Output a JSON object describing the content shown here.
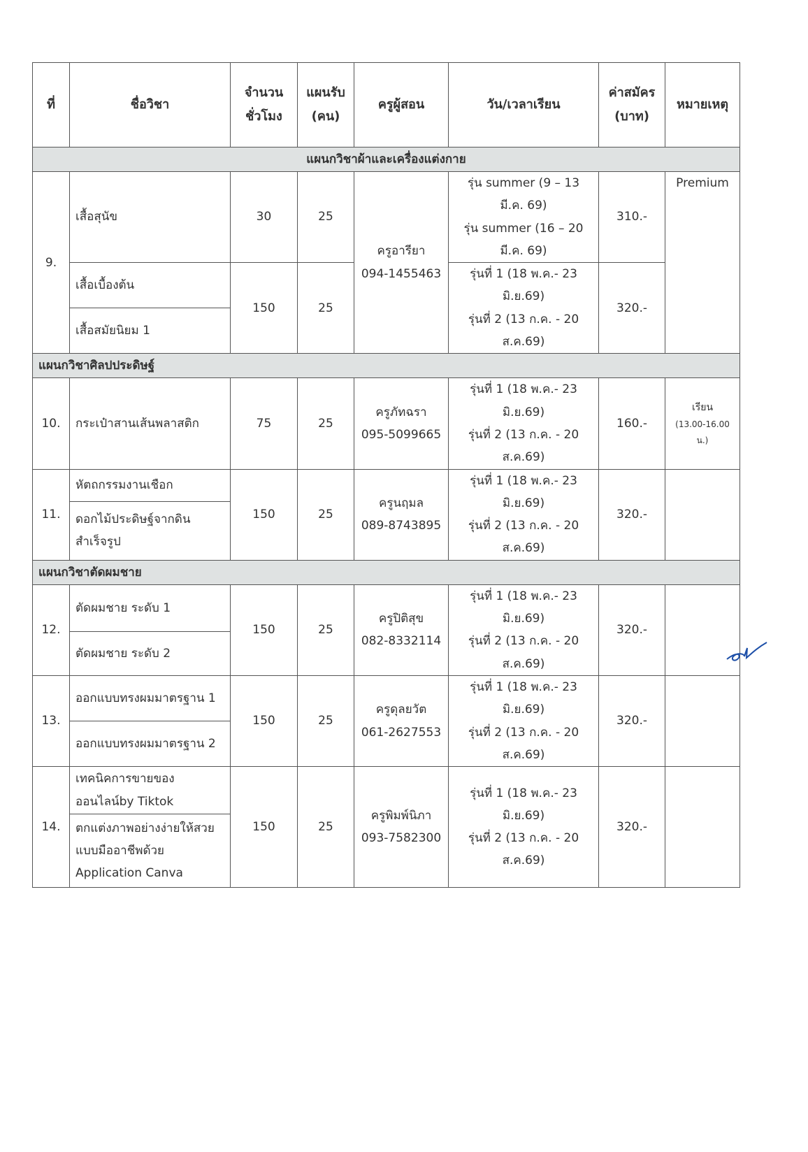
{
  "headers": {
    "no": "ที่",
    "subject": "ชื่อวิชา",
    "hours": "จำนวนชั่วโมง",
    "capacity": "แผนรับ (คน)",
    "teacher": "ครูผู้สอน",
    "schedule": "วัน/เวลาเรียน",
    "fee": "ค่าสมัคร (บาท)",
    "remark": "หมายเหตุ"
  },
  "sections": [
    {
      "title": "แผนกวิชาผ้าและเครื่องแต่งกาย",
      "courses": [
        {
          "no": "9.",
          "subjects": [
            "เสื้อสุนัข",
            "เสื้อเบื้องต้น",
            "เสื้อสมัยนิยม 1"
          ],
          "hours": [
            "30",
            "150"
          ],
          "capacity": [
            "25",
            "25"
          ],
          "teacher": "ครูอารียา",
          "phone": "094-1455463",
          "schedule": [
            "รุ่น summer (9 – 13 มี.ค. 69)",
            "รุ่น summer (16 – 20 มี.ค. 69)",
            "รุ่นที่ 1 (18 พ.ค.- 23 มิ.ย.69)",
            "รุ่นที่ 2 (13 ก.ค. - 20 ส.ค.69)"
          ],
          "fee": [
            "310.-",
            "320.-"
          ],
          "remark": "Premium"
        }
      ]
    },
    {
      "title": "แผนกวิชาศิลปประดิษฐ์",
      "courses": [
        {
          "no": "10.",
          "subjects": [
            "กระเป๋าสานเส้นพลาสติก"
          ],
          "hours": "75",
          "capacity": "25",
          "teacher": "ครูภัทฉรา",
          "phone": "095-5099665",
          "schedule": [
            "รุ่นที่ 1 (18 พ.ค.- 23 มิ.ย.69)",
            "รุ่นที่ 2 (13 ก.ค. - 20 ส.ค.69)"
          ],
          "fee": "160.-",
          "remark": [
            "เรียน",
            "(13.00-16.00 น.)"
          ]
        },
        {
          "no": "11.",
          "subjects": [
            "หัตถกรรมงานเชือก",
            "ดอกไม้ประดิษฐ์จากดินสำเร็จรูป"
          ],
          "hours": "150",
          "capacity": "25",
          "teacher": "ครูนฤมล",
          "phone": "089-8743895",
          "schedule": [
            "รุ่นที่ 1 (18 พ.ค.- 23 มิ.ย.69)",
            "รุ่นที่ 2 (13 ก.ค. - 20 ส.ค.69)"
          ],
          "fee": "320.-"
        }
      ]
    },
    {
      "title": "แผนกวิชาตัดผมชาย",
      "courses": [
        {
          "no": "12.",
          "subjects": [
            "ตัดผมชาย ระดับ 1",
            "ตัดผมชาย ระดับ 2"
          ],
          "hours": "150",
          "capacity": "25",
          "teacher": "ครูปิติสุข",
          "phone": "082-8332114",
          "schedule": [
            "รุ่นที่ 1 (18 พ.ค.- 23 มิ.ย.69)",
            "รุ่นที่ 2 (13 ก.ค. - 20 ส.ค.69)"
          ],
          "fee": "320.-"
        },
        {
          "no": "13.",
          "subjects": [
            "ออกแบบทรงผมมาตรฐาน 1",
            "ออกแบบทรงผมมาตรฐาน 2"
          ],
          "hours": "150",
          "capacity": "25",
          "teacher": "ครูดุลยวัต",
          "phone": "061-2627553",
          "schedule": [
            "รุ่นที่ 1 (18 พ.ค.- 23 มิ.ย.69)",
            "รุ่นที่ 2 (13 ก.ค. - 20 ส.ค.69)"
          ],
          "fee": "320.-"
        },
        {
          "no": "14.",
          "subjects": [
            "เทคนิคการขายของออนไลน์by Tiktok",
            "ตกแต่งภาพอย่างง่ายให้สวย แบบมืออาชีพด้วย Application Canva"
          ],
          "hours": "150",
          "capacity": "25",
          "teacher": "ครูพิมพ์นิภา",
          "phone": "093-7582300",
          "schedule": [
            "รุ่นที่ 1 (18 พ.ค.- 23 มิ.ย.69)",
            "รุ่นที่ 2 (13 ก.ค. - 20 ส.ค.69)"
          ],
          "fee": "320.-"
        }
      ]
    }
  ]
}
